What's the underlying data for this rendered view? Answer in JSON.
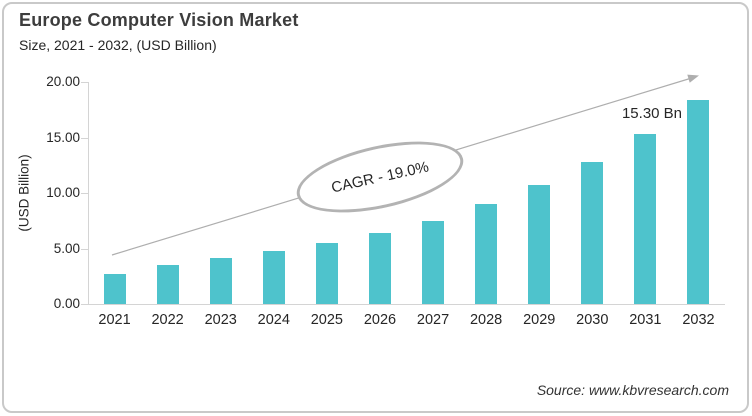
{
  "header": {
    "title": "Europe Computer Vision Market",
    "subtitle": "Size, 2021 - 2032, (USD Billion)"
  },
  "footer": {
    "source": "Source: www.kbvresearch.com"
  },
  "chart_data": {
    "type": "bar",
    "title": "Europe Computer Vision Market Size, 2021 - 2032, (USD Billion)",
    "categories": [
      "2021",
      "2022",
      "2023",
      "2024",
      "2025",
      "2026",
      "2027",
      "2028",
      "2029",
      "2030",
      "2031",
      "2032"
    ],
    "values": [
      2.7,
      3.5,
      4.1,
      4.8,
      5.5,
      6.4,
      7.5,
      9.0,
      10.7,
      12.8,
      15.3,
      18.4
    ],
    "xlabel": "",
    "ylabel": "(USD Billion)",
    "ylim": [
      0,
      20
    ],
    "y_ticks": [
      0,
      5,
      10,
      15,
      20
    ],
    "y_tick_labels": [
      "0.00",
      "5.00",
      "10.00",
      "15.00",
      "20.00"
    ],
    "grid": false,
    "legend": null,
    "bar_color": "#4EC3CC",
    "axis_color": "#d4d4d4",
    "annotation_color": "#b3b3b3",
    "annotations": [
      {
        "type": "cagr-ellipse",
        "text": "CAGR - 19.0%"
      },
      {
        "type": "value-label",
        "text": "15.30 Bn",
        "category": "2031",
        "value": 15.3
      },
      {
        "type": "trend-arrow",
        "direction": "up"
      }
    ]
  }
}
